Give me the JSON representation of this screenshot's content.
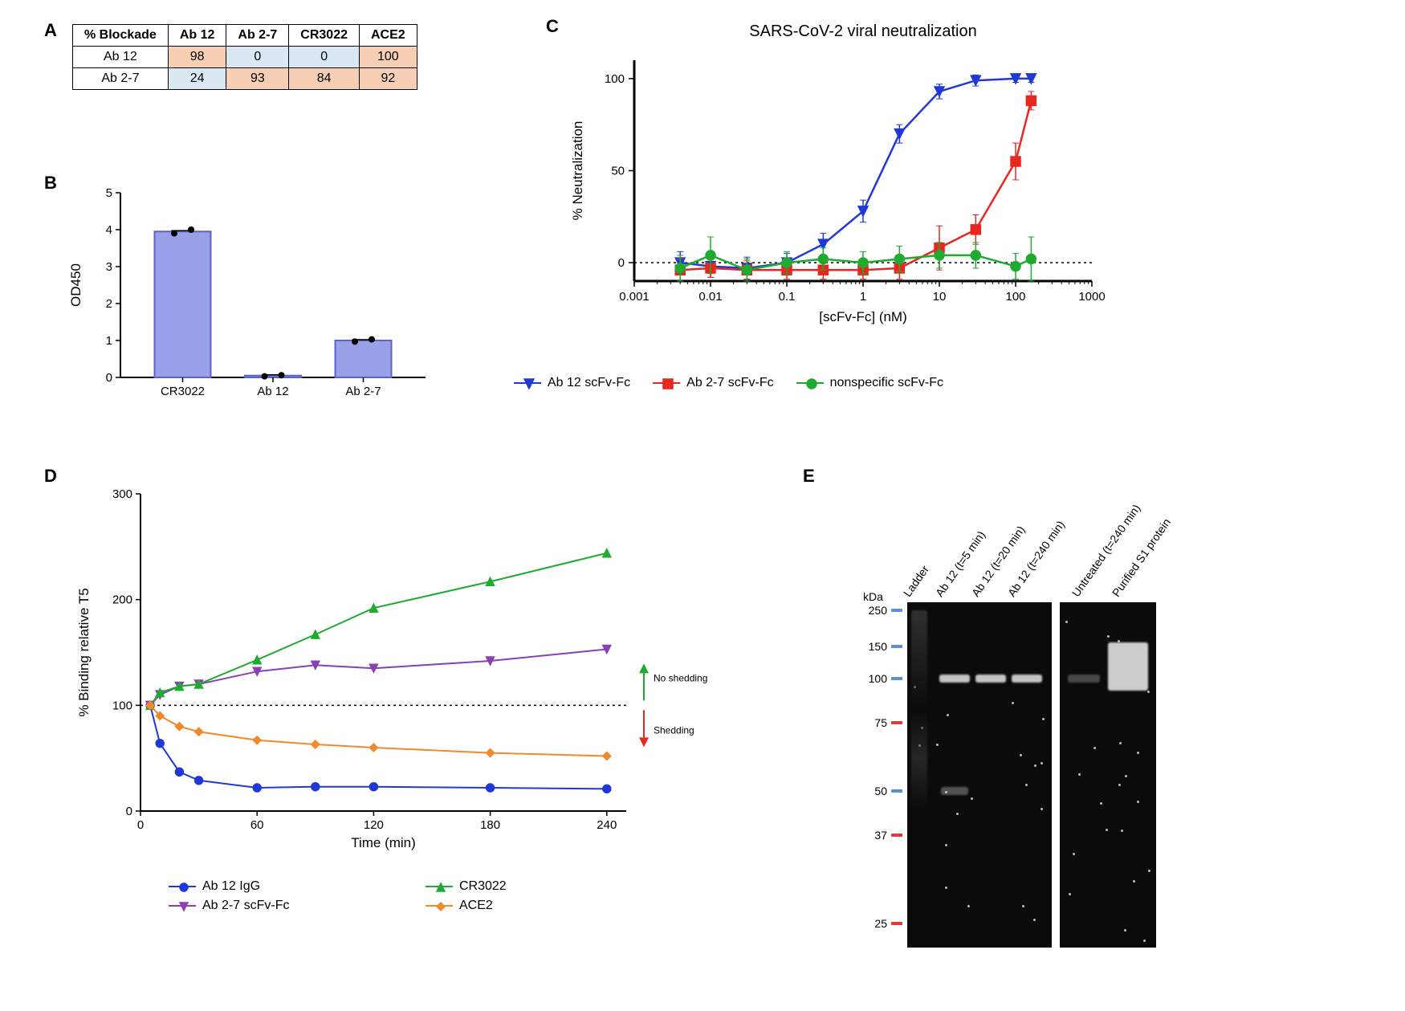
{
  "colors": {
    "blue": "#2138d8",
    "red": "#e8271f",
    "green": "#1fab2f",
    "purple": "#8a3fb5",
    "orange": "#f08a2c",
    "bar_fill": "#9aa0e8",
    "bar_stroke": "#5b63c9",
    "hl_high": "#f7cfb4",
    "hl_low": "#dae8f3",
    "tick_blue": "#5b8fd6",
    "tick_red": "#e03a3a"
  },
  "panel_labels": {
    "A": "A",
    "B": "B",
    "C": "C",
    "D": "D",
    "E": "E"
  },
  "A": {
    "header": [
      "% Blockade",
      "Ab 12",
      "Ab 2-7",
      "CR3022",
      "ACE2"
    ],
    "rows": [
      {
        "label": "Ab 12",
        "cells": [
          {
            "v": "98",
            "hl": "high"
          },
          {
            "v": "0",
            "hl": "low"
          },
          {
            "v": "0",
            "hl": "low"
          },
          {
            "v": "100",
            "hl": "high"
          }
        ]
      },
      {
        "label": "Ab 2-7",
        "cells": [
          {
            "v": "24",
            "hl": "low"
          },
          {
            "v": "93",
            "hl": "high"
          },
          {
            "v": "84",
            "hl": "high"
          },
          {
            "v": "92",
            "hl": "high"
          }
        ]
      }
    ]
  },
  "B": {
    "ylabel": "OD450",
    "ylim": [
      0,
      5
    ],
    "ytick_step": 1,
    "categories": [
      "CR3022",
      "Ab 12",
      "Ab 2-7"
    ],
    "values": [
      3.95,
      0.05,
      1.0
    ],
    "scatter": [
      [
        3.9,
        4.0
      ],
      [
        0.03,
        0.06
      ],
      [
        0.97,
        1.03
      ]
    ]
  },
  "C": {
    "title": "SARS-CoV-2 viral neutralization",
    "xlabel": "[scFv-Fc] (nM)",
    "ylabel": "% Neutralization",
    "xticks": [
      0.001,
      0.01,
      0.1,
      1,
      10,
      100,
      1000
    ],
    "ylim": [
      -10,
      110
    ],
    "yticks": [
      0,
      50,
      100
    ],
    "series": [
      {
        "name": "Ab 12 scFv-Fc",
        "color": "blue",
        "marker": "tri-down",
        "x": [
          0.004,
          0.01,
          0.03,
          0.1,
          0.3,
          1,
          3,
          10,
          30,
          100,
          160
        ],
        "y": [
          0,
          -2,
          -3,
          0,
          10,
          28,
          70,
          93,
          99,
          100,
          100
        ],
        "err": [
          6,
          6,
          6,
          5,
          6,
          6,
          5,
          4,
          3,
          2,
          2
        ]
      },
      {
        "name": "Ab 2-7 scFv-Fc",
        "color": "red",
        "marker": "square",
        "x": [
          0.004,
          0.01,
          0.03,
          0.1,
          0.3,
          1,
          3,
          10,
          30,
          100,
          160
        ],
        "y": [
          -4,
          -3,
          -4,
          -4,
          -4,
          -4,
          -3,
          8,
          18,
          55,
          88
        ],
        "err": [
          6,
          5,
          5,
          5,
          5,
          5,
          6,
          12,
          8,
          10,
          5
        ]
      },
      {
        "name": "nonspecific scFv-Fc",
        "color": "green",
        "marker": "circle",
        "x": [
          0.004,
          0.01,
          0.03,
          0.1,
          0.3,
          1,
          3,
          10,
          30,
          100,
          160
        ],
        "y": [
          -3,
          4,
          -4,
          0,
          2,
          0,
          2,
          4,
          4,
          -2,
          2
        ],
        "err": [
          7,
          10,
          6,
          6,
          6,
          6,
          7,
          7,
          7,
          7,
          12
        ]
      }
    ],
    "legend": [
      "Ab 12 scFv-Fc",
      "Ab 2-7 scFv-Fc",
      "nonspecific scFv-Fc"
    ]
  },
  "D": {
    "xlabel": "Time (min)",
    "ylabel": "% Binding relative  T5",
    "xlim": [
      0,
      250
    ],
    "xticks": [
      0,
      60,
      120,
      180,
      240
    ],
    "ylim": [
      0,
      300
    ],
    "yticks": [
      0,
      100,
      200,
      300
    ],
    "annot_up": "No shedding",
    "annot_down": "Shedding",
    "series": [
      {
        "name": "Ab 12 IgG",
        "color": "blue",
        "marker": "circle",
        "x": [
          5,
          10,
          20,
          30,
          60,
          90,
          120,
          180,
          240
        ],
        "y": [
          100,
          64,
          37,
          29,
          22,
          23,
          23,
          22,
          21
        ]
      },
      {
        "name": "Ab 2-7 scFv-Fc",
        "color": "purple",
        "marker": "tri-down",
        "x": [
          5,
          10,
          20,
          30,
          60,
          90,
          120,
          180,
          240
        ],
        "y": [
          100,
          110,
          118,
          120,
          132,
          138,
          135,
          142,
          153
        ]
      },
      {
        "name": "CR3022",
        "color": "green",
        "marker": "tri-up",
        "x": [
          5,
          10,
          20,
          30,
          60,
          90,
          120,
          180,
          240
        ],
        "y": [
          100,
          112,
          118,
          120,
          143,
          167,
          192,
          217,
          244
        ]
      },
      {
        "name": "ACE2",
        "color": "orange",
        "marker": "diamond",
        "x": [
          5,
          10,
          20,
          30,
          60,
          90,
          120,
          180,
          240
        ],
        "y": [
          100,
          90,
          80,
          75,
          67,
          63,
          60,
          55,
          52
        ]
      }
    ],
    "legend": [
      [
        "Ab 12 IgG",
        "blue",
        "circle"
      ],
      [
        "CR3022",
        "green",
        "tri-up"
      ],
      [
        "Ab 2-7 scFv-Fc",
        "purple",
        "tri-down"
      ],
      [
        "ACE2",
        "orange",
        "diamond"
      ]
    ]
  },
  "E": {
    "kda_label": "kDa",
    "lanes": [
      "Ladder",
      "Ab 12 (t=5 min)",
      "Ab 12 (t=20 min)",
      "Ab 12 (t=240 min)",
      "Untreated (t=240 min)",
      "Purified S1 protein"
    ],
    "mw": [
      {
        "v": "250",
        "c": "tick_blue"
      },
      {
        "v": "150",
        "c": "tick_blue"
      },
      {
        "v": "100",
        "c": "tick_blue"
      },
      {
        "v": "75",
        "c": "tick_red"
      },
      {
        "v": "50",
        "c": "tick_blue"
      },
      {
        "v": "37",
        "c": "tick_red"
      },
      {
        "v": "25",
        "c": "tick_red"
      }
    ]
  }
}
